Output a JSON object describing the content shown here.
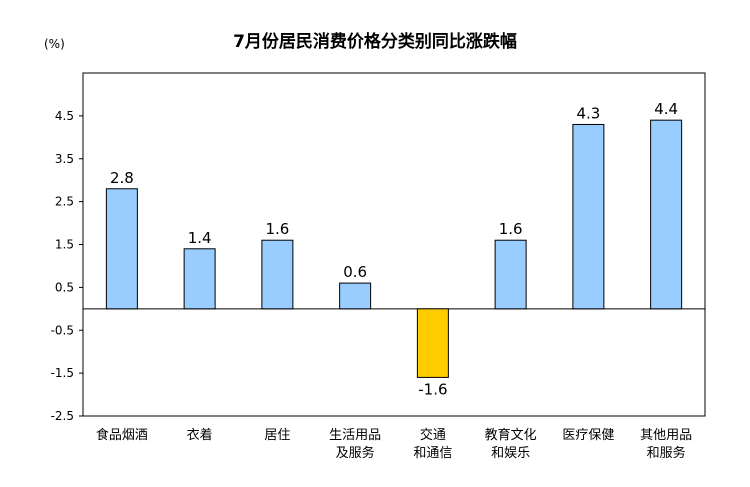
{
  "chart_data": {
    "type": "bar",
    "title": "7月份居民消费价格分类别同比涨跌幅",
    "unit_label": "(%)",
    "categories": [
      [
        "食品烟酒"
      ],
      [
        "衣着"
      ],
      [
        "居住"
      ],
      [
        "生活用品",
        "及服务"
      ],
      [
        "交通",
        "和通信"
      ],
      [
        "教育文化",
        "和娱乐"
      ],
      [
        "医疗保健"
      ],
      [
        "其他用品",
        "和服务"
      ]
    ],
    "values": [
      2.8,
      1.4,
      1.6,
      0.6,
      -1.6,
      1.6,
      4.3,
      4.4
    ],
    "value_labels": [
      "2.8",
      "1.4",
      "1.6",
      "0.6",
      "-1.6",
      "1.6",
      "4.3",
      "4.4"
    ],
    "yticks": [
      "4.5",
      "3.5",
      "2.5",
      "1.5",
      "0.5",
      "-0.5",
      "-1.5",
      "-2.5"
    ],
    "ylim": [
      -2.5,
      5.5
    ],
    "grid": false,
    "colors": {
      "positive": "#99ccff",
      "negative": "#ffcc00",
      "border": "#000000",
      "axis": "#000000"
    }
  }
}
